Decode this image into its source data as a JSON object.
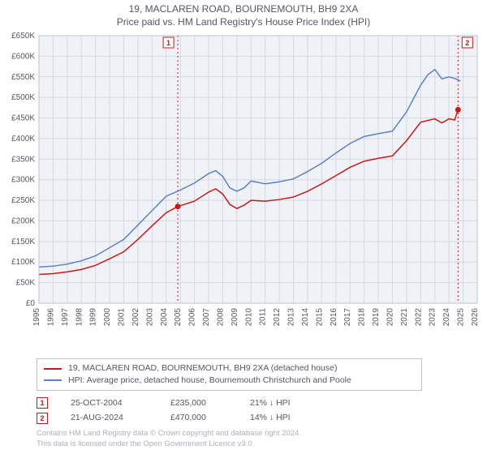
{
  "title_main": "19, MACLAREN ROAD, BOURNEMOUTH, BH9 2XA",
  "title_sub": "Price paid vs. HM Land Registry's House Price Index (HPI)",
  "chart": {
    "type": "line",
    "background_color": "#eff2f6",
    "grid_color": "#d5d9e1",
    "border_color": "#bfc2cc",
    "x_years": [
      1995,
      1996,
      1997,
      1998,
      1999,
      2000,
      2001,
      2002,
      2003,
      2004,
      2005,
      2006,
      2007,
      2008,
      2009,
      2010,
      2011,
      2012,
      2013,
      2014,
      2015,
      2016,
      2017,
      2018,
      2019,
      2020,
      2021,
      2022,
      2023,
      2024,
      2025,
      2026
    ],
    "y_max": 650000,
    "y_step": 50000,
    "y_prefix": "£",
    "y_suffix": "K",
    "y_zero_label": "£0",
    "title_fontsize": 12,
    "label_fontsize": 10,
    "series": [
      {
        "name": "price_paid",
        "color": "#cf1717",
        "width": 1.5,
        "label": "19, MACLAREN ROAD, BOURNEMOUTH, BH9 2XA (detached house)",
        "points": [
          [
            1995,
            70000
          ],
          [
            1996,
            72000
          ],
          [
            1997,
            76000
          ],
          [
            1998,
            82000
          ],
          [
            1999,
            92000
          ],
          [
            2000,
            108000
          ],
          [
            2001,
            125000
          ],
          [
            2002,
            155000
          ],
          [
            2003,
            188000
          ],
          [
            2004,
            220000
          ],
          [
            2004.82,
            235000
          ],
          [
            2005,
            237000
          ],
          [
            2006,
            248000
          ],
          [
            2007,
            270000
          ],
          [
            2007.5,
            278000
          ],
          [
            2008,
            265000
          ],
          [
            2008.5,
            240000
          ],
          [
            2009,
            230000
          ],
          [
            2009.5,
            238000
          ],
          [
            2010,
            250000
          ],
          [
            2011,
            248000
          ],
          [
            2012,
            252000
          ],
          [
            2013,
            258000
          ],
          [
            2014,
            272000
          ],
          [
            2015,
            290000
          ],
          [
            2016,
            310000
          ],
          [
            2017,
            330000
          ],
          [
            2018,
            345000
          ],
          [
            2019,
            352000
          ],
          [
            2020,
            358000
          ],
          [
            2021,
            395000
          ],
          [
            2022,
            440000
          ],
          [
            2023,
            448000
          ],
          [
            2023.5,
            438000
          ],
          [
            2024,
            448000
          ],
          [
            2024.4,
            445000
          ],
          [
            2024.64,
            470000
          ]
        ]
      },
      {
        "name": "hpi",
        "color": "#5d82c4",
        "width": 1.5,
        "label": "HPI: Average price, detached house, Bournemouth Christchurch and Poole",
        "points": [
          [
            1995,
            88000
          ],
          [
            1996,
            90000
          ],
          [
            1997,
            95000
          ],
          [
            1998,
            103000
          ],
          [
            1999,
            115000
          ],
          [
            2000,
            135000
          ],
          [
            2001,
            155000
          ],
          [
            2002,
            190000
          ],
          [
            2003,
            225000
          ],
          [
            2004,
            260000
          ],
          [
            2005,
            275000
          ],
          [
            2006,
            292000
          ],
          [
            2007,
            315000
          ],
          [
            2007.5,
            322000
          ],
          [
            2008,
            308000
          ],
          [
            2008.5,
            280000
          ],
          [
            2009,
            272000
          ],
          [
            2009.5,
            280000
          ],
          [
            2010,
            297000
          ],
          [
            2011,
            290000
          ],
          [
            2012,
            295000
          ],
          [
            2013,
            302000
          ],
          [
            2014,
            320000
          ],
          [
            2015,
            340000
          ],
          [
            2016,
            365000
          ],
          [
            2017,
            388000
          ],
          [
            2018,
            405000
          ],
          [
            2019,
            412000
          ],
          [
            2020,
            418000
          ],
          [
            2021,
            465000
          ],
          [
            2022,
            530000
          ],
          [
            2022.5,
            555000
          ],
          [
            2023,
            568000
          ],
          [
            2023.5,
            545000
          ],
          [
            2024,
            550000
          ],
          [
            2024.5,
            545000
          ],
          [
            2024.8,
            540000
          ]
        ]
      }
    ],
    "event_lines": [
      {
        "x": 2004.82,
        "color": "#cf1717",
        "style": "dotted",
        "label": "1",
        "label_side": "left"
      },
      {
        "x": 2024.64,
        "color": "#cf1717",
        "style": "dotted",
        "label": "2",
        "label_side": "right"
      }
    ],
    "sale_markers": [
      {
        "x": 2004.82,
        "y": 235000,
        "color": "#cf1717"
      },
      {
        "x": 2024.64,
        "y": 470000,
        "color": "#cf1717"
      }
    ]
  },
  "events": [
    {
      "n": "1",
      "color": "#cf1717",
      "date": "25-OCT-2004",
      "price": "£235,000",
      "delta": "21% ↓ HPI"
    },
    {
      "n": "2",
      "color": "#cf1717",
      "date": "21-AUG-2024",
      "price": "£470,000",
      "delta": "14% ↓ HPI"
    }
  ],
  "license_line1": "Contains HM Land Registry data © Crown copyright and database right 2024.",
  "license_line2": "This data is licensed under the Open Government Licence v3.0."
}
